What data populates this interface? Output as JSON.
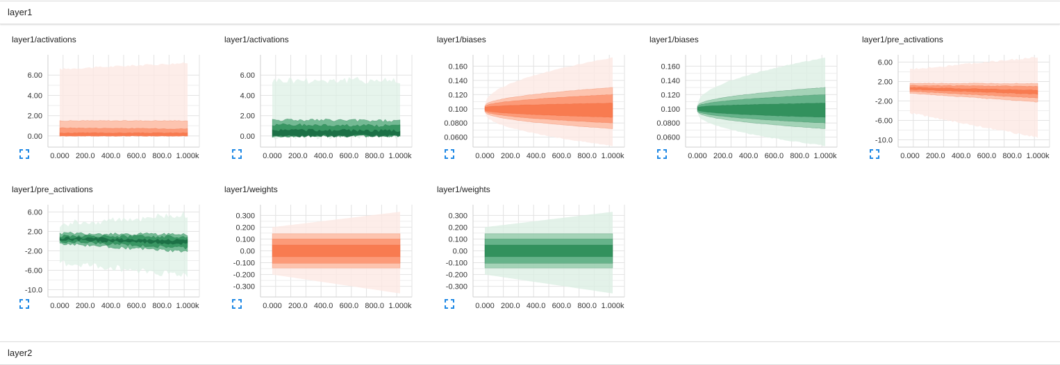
{
  "sections": [
    {
      "title": "layer1"
    },
    {
      "title": "layer2"
    }
  ],
  "palette": {
    "orange": [
      "#fde9e3",
      "#fdbfa8",
      "#fc9672",
      "#f8794e",
      "#e65f31"
    ],
    "green": [
      "#dcefe4",
      "#9ccfb1",
      "#5faf85",
      "#2f8f5b",
      "#1a6b42"
    ]
  },
  "x_axis": {
    "range": [
      0,
      1000
    ],
    "tick_values": [
      0,
      200,
      400,
      600,
      800,
      1000
    ],
    "tick_labels": [
      "0.000",
      "200.0",
      "400.0",
      "600.0",
      "800.0",
      "1.000k"
    ]
  },
  "cards": [
    {
      "title": "layer1/activations",
      "color": "orange",
      "mode": "overlay",
      "noise": 0.02,
      "y_ticks": [
        0,
        2,
        4,
        6
      ],
      "y_labels": [
        "0.00",
        "2.00",
        "4.00",
        "6.00"
      ],
      "y_range": [
        -1.1,
        8.0
      ],
      "bands": [
        [
          0,
          6.6,
          0,
          7.2
        ],
        [
          0,
          1.5,
          0,
          1.5
        ],
        [
          0,
          0.8,
          0,
          0.7
        ],
        [
          0,
          0.3,
          0,
          0.3
        ]
      ]
    },
    {
      "title": "layer1/activations",
      "color": "green",
      "mode": "offset",
      "noise": 0.08,
      "y_ticks": [
        0,
        2,
        4,
        6
      ],
      "y_labels": [
        "0.00",
        "2.00",
        "4.00",
        "6.00"
      ],
      "y_range": [
        -1.1,
        8.0
      ],
      "bands": [
        [
          0,
          5.5,
          0,
          5.5
        ],
        [
          0,
          1.6,
          0,
          1.5
        ],
        [
          0,
          1.1,
          0,
          1.0
        ],
        [
          0,
          0.6,
          0,
          0.5
        ]
      ]
    },
    {
      "title": "layer1/biases",
      "color": "orange",
      "mode": "overlay",
      "noise": 0.01,
      "y_ticks": [
        0.06,
        0.08,
        0.1,
        0.12,
        0.14,
        0.16
      ],
      "y_labels": [
        "0.0600",
        "0.0800",
        "0.100",
        "0.120",
        "0.140",
        "0.160"
      ],
      "y_range": [
        0.046,
        0.176
      ],
      "bands": [
        [
          0.094,
          0.106,
          0.048,
          0.172
        ],
        [
          0.096,
          0.104,
          0.072,
          0.13
        ],
        [
          0.097,
          0.103,
          0.08,
          0.12
        ],
        [
          0.098,
          0.102,
          0.088,
          0.108
        ]
      ]
    },
    {
      "title": "layer1/biases",
      "color": "green",
      "mode": "overlay",
      "noise": 0.01,
      "y_ticks": [
        0.06,
        0.08,
        0.1,
        0.12,
        0.14,
        0.16
      ],
      "y_labels": [
        "0.0600",
        "0.0800",
        "0.100",
        "0.120",
        "0.140",
        "0.160"
      ],
      "y_range": [
        0.046,
        0.176
      ],
      "bands": [
        [
          0.094,
          0.106,
          0.048,
          0.172
        ],
        [
          0.096,
          0.104,
          0.072,
          0.13
        ],
        [
          0.097,
          0.103,
          0.08,
          0.12
        ],
        [
          0.098,
          0.102,
          0.088,
          0.108
        ]
      ]
    },
    {
      "title": "layer1/pre_activations",
      "color": "orange",
      "mode": "overlay",
      "noise": 0.02,
      "y_ticks": [
        -10,
        -6,
        -2,
        2,
        6
      ],
      "y_labels": [
        "-10.0",
        "-6.00",
        "-2.00",
        "2.00",
        "6.00"
      ],
      "y_range": [
        -11.5,
        7.5
      ],
      "bands": [
        [
          -4.5,
          4.5,
          -9.5,
          7.0
        ],
        [
          -0.4,
          1.6,
          -2.2,
          1.6
        ],
        [
          0.0,
          1.2,
          -1.4,
          1.0
        ],
        [
          0.4,
          0.8,
          -0.6,
          0.2
        ]
      ]
    },
    {
      "title": "layer1/pre_activations",
      "color": "green",
      "mode": "offset",
      "noise": 0.08,
      "y_ticks": [
        -10,
        -6,
        -2,
        2,
        6
      ],
      "y_labels": [
        "-10.0",
        "-6.00",
        "-2.00",
        "2.00",
        "6.00"
      ],
      "y_range": [
        -11.5,
        7.5
      ],
      "bands": [
        [
          -4.5,
          3.5,
          -7.0,
          5.5
        ],
        [
          -0.5,
          1.6,
          -2.2,
          1.4
        ],
        [
          -0.1,
          1.1,
          -1.4,
          0.9
        ],
        [
          0.3,
          0.7,
          -0.6,
          0.2
        ]
      ]
    },
    {
      "title": "layer1/weights",
      "color": "orange",
      "mode": "overlay",
      "noise": 0.0,
      "y_ticks": [
        -0.3,
        -0.2,
        -0.1,
        0,
        0.1,
        0.2,
        0.3
      ],
      "y_labels": [
        "-0.300",
        "-0.200",
        "-0.100",
        "0.00",
        "0.100",
        "0.200",
        "0.300"
      ],
      "y_range": [
        -0.39,
        0.39
      ],
      "bands": [
        [
          -0.2,
          0.2,
          -0.36,
          0.33
        ],
        [
          -0.145,
          0.145,
          -0.145,
          0.145
        ],
        [
          -0.105,
          0.1,
          -0.105,
          0.1
        ],
        [
          -0.05,
          0.05,
          -0.05,
          0.05
        ]
      ]
    },
    {
      "title": "layer1/weights",
      "color": "green",
      "mode": "overlay",
      "noise": 0.0,
      "y_ticks": [
        -0.3,
        -0.2,
        -0.1,
        0,
        0.1,
        0.2,
        0.3
      ],
      "y_labels": [
        "-0.300",
        "-0.200",
        "-0.100",
        "0.00",
        "0.100",
        "0.200",
        "0.300"
      ],
      "y_range": [
        -0.39,
        0.39
      ],
      "bands": [
        [
          -0.2,
          0.2,
          -0.36,
          0.33
        ],
        [
          -0.145,
          0.145,
          -0.145,
          0.145
        ],
        [
          -0.105,
          0.1,
          -0.105,
          0.1
        ],
        [
          -0.05,
          0.05,
          -0.05,
          0.05
        ]
      ]
    }
  ]
}
